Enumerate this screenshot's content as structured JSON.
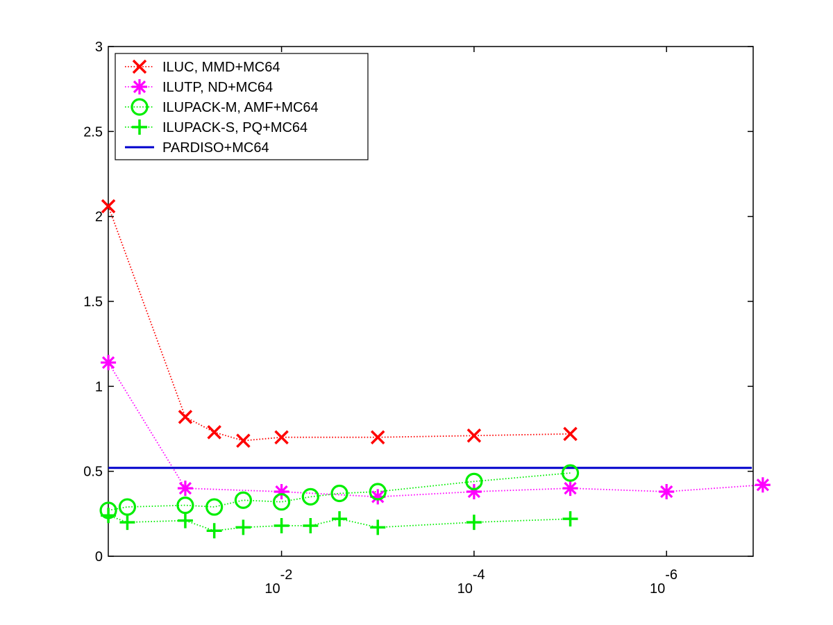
{
  "chart_data": {
    "type": "line",
    "title": "",
    "xlabel": "",
    "ylabel": "",
    "x_scale": "log-reversed",
    "x_range_log10": [
      -0.2,
      -6.9
    ],
    "xlim": [
      0.631,
      1.26e-07
    ],
    "ylim": [
      0,
      3
    ],
    "grid": false,
    "legend_position": "top-left",
    "x_tick_labels": [
      {
        "base": "10",
        "exp": "-2",
        "log10": -2
      },
      {
        "base": "10",
        "exp": "-4",
        "log10": -4
      },
      {
        "base": "10",
        "exp": "-6",
        "log10": -6
      }
    ],
    "y_ticks": [
      0,
      0.5,
      1,
      1.5,
      2,
      2.5,
      3
    ],
    "y_tick_labels": [
      "0",
      "0.5",
      "1",
      "1.5",
      "2",
      "2.5",
      "3"
    ],
    "series": [
      {
        "name": "ILUC, MMD+MC64",
        "color": "#ff0000",
        "marker": "x",
        "line": "dotted",
        "points": [
          [
            0.63,
            2.06
          ],
          [
            0.1,
            0.82
          ],
          [
            0.05,
            0.73
          ],
          [
            0.025,
            0.68
          ],
          [
            0.01,
            0.7
          ],
          [
            0.001,
            0.7
          ],
          [
            0.0001,
            0.71
          ],
          [
            1e-05,
            0.72
          ]
        ]
      },
      {
        "name": "ILUTP,  ND+MC64",
        "color": "#ff00ff",
        "marker": "asterisk",
        "line": "dotted",
        "points": [
          [
            0.63,
            1.14
          ],
          [
            0.1,
            0.4
          ],
          [
            0.01,
            0.38
          ],
          [
            0.001,
            0.35
          ],
          [
            0.0001,
            0.38
          ],
          [
            1e-05,
            0.4
          ],
          [
            1e-06,
            0.38
          ],
          [
            1e-07,
            0.42
          ]
        ]
      },
      {
        "name": "ILUPACK-M, AMF+MC64",
        "color": "#00ee00",
        "marker": "circle",
        "line": "dotted",
        "points": [
          [
            0.63,
            0.27
          ],
          [
            0.4,
            0.29
          ],
          [
            0.1,
            0.3
          ],
          [
            0.05,
            0.29
          ],
          [
            0.025,
            0.33
          ],
          [
            0.01,
            0.32
          ],
          [
            0.005,
            0.35
          ],
          [
            0.0025,
            0.37
          ],
          [
            0.001,
            0.38
          ],
          [
            0.0001,
            0.44
          ],
          [
            1e-05,
            0.49
          ]
        ]
      },
      {
        "name": "ILUPACK-S, PQ+MC64",
        "color": "#00ee00",
        "marker": "plus",
        "line": "dotted",
        "points": [
          [
            0.63,
            0.24
          ],
          [
            0.4,
            0.2
          ],
          [
            0.1,
            0.21
          ],
          [
            0.05,
            0.15
          ],
          [
            0.025,
            0.17
          ],
          [
            0.01,
            0.18
          ],
          [
            0.005,
            0.18
          ],
          [
            0.0025,
            0.22
          ],
          [
            0.001,
            0.17
          ],
          [
            0.0001,
            0.2
          ],
          [
            1e-05,
            0.22
          ]
        ]
      },
      {
        "name": "PARDISO+MC64",
        "color": "#0000cc",
        "marker": "none",
        "line": "solid",
        "points": [
          [
            0.63,
            0.52
          ],
          [
            1.3e-07,
            0.52
          ]
        ]
      }
    ]
  }
}
